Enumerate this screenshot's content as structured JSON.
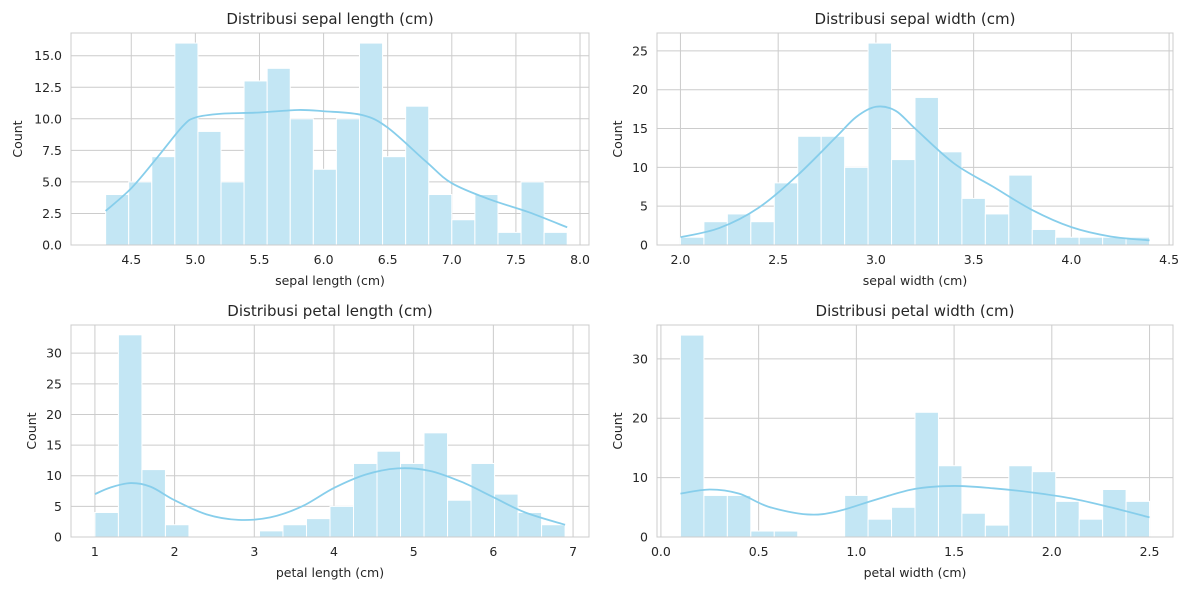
{
  "colors": {
    "bar_fill": "#c3e6f4",
    "bar_edge": "#ffffff",
    "kde_line": "#87ceeb",
    "grid": "#cccccc",
    "spine": "#cccccc",
    "background": "#ffffff"
  },
  "chart_data": [
    {
      "type": "bar",
      "title": "Distribusi sepal length (cm)",
      "xlabel": "sepal length (cm)",
      "ylabel": "Count",
      "xlim": [
        4.03,
        8.07
      ],
      "ylim": [
        0,
        16.8
      ],
      "grid": true,
      "bin_edges": [
        4.3,
        4.48,
        4.66,
        4.84,
        5.02,
        5.2,
        5.38,
        5.56,
        5.74,
        5.92,
        6.1,
        6.28,
        6.46,
        6.64,
        6.82,
        7.0,
        7.18,
        7.36,
        7.54,
        7.72,
        7.9
      ],
      "values": [
        4,
        5,
        7,
        16,
        9,
        5,
        13,
        14,
        10,
        6,
        10,
        16,
        7,
        11,
        4,
        2,
        4,
        1,
        5,
        1
      ],
      "xticks": [
        4.5,
        5.0,
        5.5,
        6.0,
        6.5,
        7.0,
        7.5,
        8.0
      ],
      "xtick_labels": [
        "4.5",
        "5.0",
        "5.5",
        "6.0",
        "6.5",
        "7.0",
        "7.5",
        "8.0"
      ],
      "yticks": [
        0,
        2.5,
        5,
        7.5,
        10,
        12.5,
        15
      ],
      "ytick_labels": [
        "0.0",
        "2.5",
        "5.0",
        "7.5",
        "10.0",
        "12.5",
        "15.0"
      ],
      "kde": {
        "x": [
          4.3,
          4.5,
          4.7,
          4.9,
          5.0,
          5.2,
          5.5,
          5.8,
          6.0,
          6.3,
          6.5,
          6.8,
          7.0,
          7.3,
          7.6,
          7.9
        ],
        "y": [
          2.7,
          4.5,
          6.9,
          9.4,
          10.1,
          10.4,
          10.5,
          10.7,
          10.6,
          10.3,
          9.3,
          6.6,
          4.9,
          3.6,
          2.6,
          1.4
        ]
      }
    },
    {
      "type": "bar",
      "title": "Distribusi sepal width (cm)",
      "xlabel": "sepal width (cm)",
      "ylabel": "Count",
      "xlim": [
        1.88,
        4.52
      ],
      "ylim": [
        0,
        27.3
      ],
      "grid": true,
      "bin_edges": [
        2.0,
        2.12,
        2.24,
        2.36,
        2.48,
        2.6,
        2.72,
        2.84,
        2.96,
        3.08,
        3.2,
        3.32,
        3.44,
        3.56,
        3.68,
        3.8,
        3.92,
        4.04,
        4.16,
        4.28,
        4.4
      ],
      "values": [
        1,
        3,
        4,
        3,
        8,
        14,
        14,
        10,
        26,
        11,
        19,
        12,
        6,
        4,
        9,
        2,
        1,
        1,
        1,
        1
      ],
      "xticks": [
        2.0,
        2.5,
        3.0,
        3.5,
        4.0,
        4.5
      ],
      "xtick_labels": [
        "2.0",
        "2.5",
        "3.0",
        "3.5",
        "4.0",
        "4.5"
      ],
      "yticks": [
        0,
        5,
        10,
        15,
        20,
        25
      ],
      "ytick_labels": [
        "0",
        "5",
        "10",
        "15",
        "20",
        "25"
      ],
      "kde": {
        "x": [
          2.0,
          2.2,
          2.4,
          2.6,
          2.8,
          2.9,
          3.0,
          3.1,
          3.2,
          3.4,
          3.6,
          3.8,
          4.0,
          4.2,
          4.4
        ],
        "y": [
          1.0,
          2.2,
          4.8,
          9.0,
          14.0,
          16.5,
          17.8,
          17.3,
          15.0,
          10.5,
          7.5,
          4.5,
          2.3,
          1.1,
          0.6
        ]
      }
    },
    {
      "type": "bar",
      "title": "Distribusi petal length (cm)",
      "xlabel": "petal length (cm)",
      "ylabel": "Count",
      "xlim": [
        0.7,
        7.2
      ],
      "ylim": [
        0,
        34.6
      ],
      "grid": true,
      "bin_edges": [
        1.0,
        1.295,
        1.59,
        1.885,
        2.18,
        2.475,
        2.77,
        3.065,
        3.36,
        3.655,
        3.95,
        4.245,
        4.54,
        4.835,
        5.13,
        5.425,
        5.72,
        6.015,
        6.31,
        6.605,
        6.9
      ],
      "values": [
        4,
        33,
        11,
        2,
        0,
        0,
        0,
        1,
        2,
        3,
        5,
        12,
        14,
        12,
        17,
        6,
        12,
        7,
        4,
        2
      ],
      "xticks": [
        1,
        2,
        3,
        4,
        5,
        6,
        7
      ],
      "xtick_labels": [
        "1",
        "2",
        "3",
        "4",
        "5",
        "6",
        "7"
      ],
      "yticks": [
        0,
        5,
        10,
        15,
        20,
        25,
        30
      ],
      "ytick_labels": [
        "0",
        "5",
        "10",
        "15",
        "20",
        "25",
        "30"
      ],
      "kde": {
        "x": [
          1.0,
          1.2,
          1.45,
          1.7,
          2.0,
          2.4,
          2.8,
          3.2,
          3.6,
          4.0,
          4.4,
          4.8,
          5.2,
          5.6,
          6.0,
          6.4,
          6.9
        ],
        "y": [
          7.0,
          8.1,
          8.8,
          8.2,
          6.0,
          3.7,
          2.8,
          3.2,
          5.0,
          8.0,
          10.2,
          11.2,
          10.8,
          9.0,
          6.5,
          4.0,
          2.0
        ]
      }
    },
    {
      "type": "bar",
      "title": "Distribusi petal width (cm)",
      "xlabel": "petal width (cm)",
      "ylabel": "Count",
      "xlim": [
        -0.02,
        2.62
      ],
      "ylim": [
        0,
        35.7
      ],
      "grid": true,
      "bin_edges": [
        0.1,
        0.22,
        0.34,
        0.46,
        0.58,
        0.7,
        0.82,
        0.94,
        1.06,
        1.18,
        1.3,
        1.42,
        1.54,
        1.66,
        1.78,
        1.9,
        2.02,
        2.14,
        2.26,
        2.38,
        2.5
      ],
      "values": [
        34,
        7,
        7,
        1,
        1,
        0,
        0,
        7,
        3,
        5,
        21,
        12,
        4,
        2,
        12,
        11,
        6,
        3,
        8,
        6
      ],
      "xticks": [
        0.0,
        0.5,
        1.0,
        1.5,
        2.0,
        2.5
      ],
      "xtick_labels": [
        "0.0",
        "0.5",
        "1.0",
        "1.5",
        "2.0",
        "2.5"
      ],
      "yticks": [
        0,
        10,
        20,
        30
      ],
      "ytick_labels": [
        "0",
        "10",
        "20",
        "30"
      ],
      "kde": {
        "x": [
          0.1,
          0.25,
          0.4,
          0.55,
          0.75,
          0.9,
          1.1,
          1.3,
          1.5,
          1.7,
          1.9,
          2.1,
          2.3,
          2.5
        ],
        "y": [
          7.3,
          8.0,
          7.3,
          5.1,
          3.8,
          4.3,
          6.3,
          8.1,
          8.6,
          8.2,
          7.5,
          6.5,
          5.0,
          3.3
        ]
      }
    }
  ]
}
